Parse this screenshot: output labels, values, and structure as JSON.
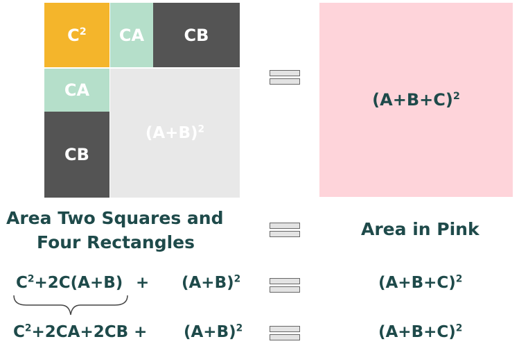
{
  "colors": {
    "yellow": "#f4b52b",
    "mint": "#b5dfca",
    "dark_gray": "#545454",
    "light_gray": "#e8e8e8",
    "pink": "#fed4da",
    "text_teal": "#1e4a4a"
  },
  "grid": {
    "c_squared": "C",
    "c_squared_exp": "2",
    "ca_top": "CA",
    "cb_top": "CB",
    "ca_left": "CA",
    "cb_left": "CB",
    "ab_squared": "(A+B)",
    "ab_squared_exp": "2"
  },
  "big_square": {
    "label": "(A+B+C)",
    "label_exp": "2"
  },
  "row1": {
    "left_line1": "Area Two Squares and",
    "left_line2": "Four Rectangles",
    "right": "Area in Pink"
  },
  "row2": {
    "c": "C",
    "c_exp": "2",
    "rest": "+2C(A+B)",
    "plus": "+",
    "ab": "(A+B)",
    "ab_exp": "2",
    "rhs": "(A+B+C)",
    "rhs_exp": "2"
  },
  "row3": {
    "c": "C",
    "c_exp": "2",
    "rest": "+2CA+2CB +",
    "ab": "(A+B)",
    "ab_exp": "2",
    "rhs": "(A+B+C)",
    "rhs_exp": "2"
  },
  "equals_icon": "equals-icon"
}
